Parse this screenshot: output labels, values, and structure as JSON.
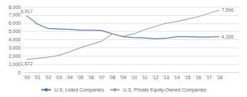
{
  "chart_data": {
    "type": "line",
    "x": [
      2000,
      2001,
      2002,
      2003,
      2004,
      2005,
      2006,
      2007,
      2008,
      2009,
      2010,
      2011,
      2012,
      2013,
      2014,
      2015,
      2016,
      2017,
      2018
    ],
    "series": [
      {
        "name": "U.S. Listed Companies",
        "color": "#4472c4",
        "values": [
          6917,
          5900,
          5350,
          5300,
          5250,
          5150,
          5150,
          5100,
          4700,
          4350,
          4250,
          4200,
          4100,
          4150,
          4350,
          4350,
          4300,
          4300,
          4336
        ]
      },
      {
        "name": "U.S. Private Equity-Owned Companies",
        "color": "#a0a0a0",
        "values": [
          1572,
          1700,
          1850,
          2050,
          2500,
          3000,
          3400,
          3800,
          4700,
          4400,
          4700,
          5200,
          5600,
          6000,
          6200,
          6500,
          6800,
          7200,
          7596
        ]
      }
    ],
    "annotations": [
      {
        "text": "6,917",
        "x": 2000,
        "y": 6917
      },
      {
        "text": "1,572",
        "x": 2000,
        "y": 1572
      },
      {
        "text": "4,336",
        "x": 2018,
        "y": 4336
      },
      {
        "text": "7,596",
        "x": 2018,
        "y": 7596
      }
    ],
    "xlim": [
      1999.7,
      2019.8
    ],
    "xticks": [
      {
        "value": 2000,
        "label": "’00"
      },
      {
        "value": 2001,
        "label": "’01"
      },
      {
        "value": 2002,
        "label": "’02"
      },
      {
        "value": 2003,
        "label": "’03"
      },
      {
        "value": 2004,
        "label": "’04"
      },
      {
        "value": 2005,
        "label": "’05"
      },
      {
        "value": 2006,
        "label": "’06"
      },
      {
        "value": 2007,
        "label": "’07"
      },
      {
        "value": 2008,
        "label": "’08"
      },
      {
        "value": 2009,
        "label": "’09"
      },
      {
        "value": 2010,
        "label": "’10"
      },
      {
        "value": 2011,
        "label": "’11"
      },
      {
        "value": 2012,
        "label": "’12"
      },
      {
        "value": 2013,
        "label": "’13"
      },
      {
        "value": 2014,
        "label": "’14"
      },
      {
        "value": 2015,
        "label": "’15"
      },
      {
        "value": 2016,
        "label": "’16"
      },
      {
        "value": 2017,
        "label": "’17"
      },
      {
        "value": 2018,
        "label": "’18"
      }
    ],
    "ylim": [
      0,
      8000
    ],
    "yticks": [
      0,
      {
        "value": 1000,
        "label": "1,000"
      },
      {
        "value": 2000,
        "label": "2,000"
      },
      {
        "value": 3000,
        "label": "3,000"
      },
      {
        "value": 4000,
        "label": "4,000"
      },
      {
        "value": 5000,
        "label": "5,000"
      },
      {
        "value": 6000,
        "label": "6,000"
      },
      {
        "value": 7000,
        "label": "7,000"
      },
      {
        "value": 8000,
        "label": "8,000"
      }
    ],
    "grid": true,
    "legend": "bottom"
  }
}
